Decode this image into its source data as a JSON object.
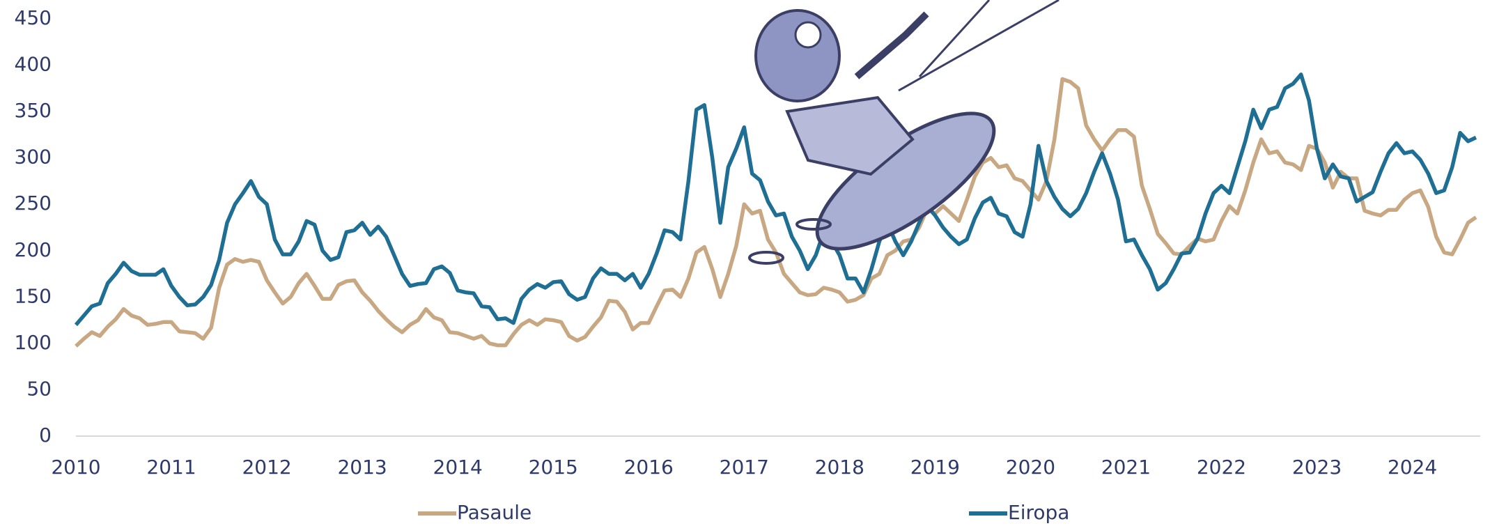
{
  "chart_data": {
    "type": "line",
    "categories": [
      "2010",
      null,
      null,
      null,
      null,
      null,
      null,
      null,
      null,
      null,
      null,
      null,
      "2011",
      null,
      null,
      null,
      null,
      null,
      null,
      null,
      null,
      null,
      null,
      null,
      "2012",
      null,
      null,
      null,
      null,
      null,
      null,
      null,
      null,
      null,
      null,
      null,
      "2013",
      null,
      null,
      null,
      null,
      null,
      null,
      null,
      null,
      null,
      null,
      null,
      "2014",
      null,
      null,
      null,
      null,
      null,
      null,
      null,
      null,
      null,
      null,
      null,
      "2015",
      null,
      null,
      null,
      null,
      null,
      null,
      null,
      null,
      null,
      null,
      null,
      "2016",
      null,
      null,
      null,
      null,
      null,
      null,
      null,
      null,
      null,
      null,
      null,
      "2017",
      null,
      null,
      null,
      null,
      null,
      null,
      null,
      null,
      null,
      null,
      null,
      "2018",
      null,
      null,
      null,
      null,
      null,
      null,
      null,
      null,
      null,
      null,
      null,
      "2019",
      null,
      null,
      null,
      null,
      null,
      null,
      null,
      null,
      null,
      null,
      null,
      "2020",
      null,
      null,
      null,
      null,
      null,
      null,
      null,
      null,
      null,
      null,
      null,
      "2021",
      null,
      null,
      null,
      null,
      null,
      null,
      null,
      null,
      null,
      null,
      null,
      "2022",
      null,
      null,
      null,
      null,
      null,
      null,
      null,
      null,
      null,
      null,
      null,
      "2023",
      null,
      null,
      null,
      null,
      null,
      null,
      null,
      null,
      null,
      null,
      null,
      "2024",
      null,
      null,
      null,
      null,
      null,
      null,
      null,
      null
    ],
    "series": [
      {
        "name": "Pasaule",
        "color": "#c8a882",
        "values": [
          97,
          105,
          112,
          108,
          118,
          126,
          137,
          130,
          127,
          120,
          121,
          123,
          123,
          113,
          112,
          111,
          105,
          117,
          160,
          185,
          191,
          188,
          190,
          188,
          168,
          155,
          143,
          150,
          165,
          175,
          162,
          148,
          148,
          163,
          167,
          168,
          155,
          146,
          135,
          126,
          118,
          112,
          120,
          125,
          137,
          128,
          125,
          112,
          111,
          108,
          105,
          108,
          100,
          98,
          98,
          110,
          120,
          125,
          120,
          126,
          125,
          123,
          108,
          103,
          107,
          118,
          128,
          146,
          145,
          134,
          115,
          122,
          122,
          140,
          157,
          158,
          150,
          170,
          198,
          204,
          180,
          150,
          175,
          205,
          250,
          240,
          243,
          212,
          198,
          175,
          165,
          155,
          152,
          153,
          160,
          158,
          155,
          145,
          147,
          152,
          170,
          175,
          195,
          200,
          210,
          212,
          225,
          245,
          240,
          248,
          240,
          232,
          255,
          280,
          295,
          300,
          290,
          292,
          278,
          275,
          265,
          255,
          275,
          320,
          385,
          382,
          375,
          335,
          320,
          308,
          320,
          330,
          330,
          323,
          270,
          245,
          218,
          208,
          197,
          196,
          205,
          213,
          210,
          212,
          232,
          248,
          240,
          265,
          295,
          320,
          305,
          307,
          295,
          293,
          287,
          313,
          310,
          295,
          268,
          285,
          278,
          278,
          243,
          240,
          238,
          244,
          244,
          255,
          262,
          265,
          247,
          215,
          198,
          196,
          212,
          230,
          236
        ]
      },
      {
        "name": "Eiropa",
        "color": "#1f6f94",
        "values": [
          120,
          130,
          140,
          143,
          165,
          175,
          187,
          178,
          174,
          174,
          174,
          180,
          162,
          150,
          141,
          142,
          150,
          163,
          190,
          230,
          250,
          262,
          275,
          258,
          250,
          212,
          196,
          196,
          210,
          232,
          228,
          200,
          190,
          193,
          220,
          222,
          230,
          217,
          226,
          215,
          195,
          175,
          162,
          164,
          165,
          180,
          183,
          176,
          157,
          155,
          154,
          140,
          139,
          126,
          127,
          122,
          148,
          158,
          164,
          160,
          166,
          167,
          153,
          147,
          150,
          170,
          181,
          175,
          175,
          168,
          175,
          160,
          175,
          197,
          222,
          220,
          212,
          275,
          352,
          357,
          300,
          230,
          290,
          310,
          333,
          283,
          276,
          253,
          238,
          240,
          215,
          200,
          180,
          195,
          220,
          210,
          195,
          170,
          170,
          155,
          180,
          210,
          230,
          210,
          195,
          210,
          230,
          248,
          238,
          225,
          215,
          207,
          212,
          235,
          252,
          257,
          240,
          237,
          220,
          215,
          250,
          313,
          275,
          258,
          245,
          237,
          245,
          262,
          285,
          305,
          283,
          255,
          210,
          212,
          195,
          180,
          158,
          165,
          180,
          197,
          198,
          213,
          240,
          262,
          270,
          262,
          290,
          318,
          352,
          332,
          352,
          355,
          375,
          380,
          390,
          362,
          310,
          278,
          293,
          280,
          278,
          253,
          258,
          263,
          285,
          305,
          316,
          305,
          307,
          298,
          283,
          262,
          265,
          290,
          327,
          318,
          322
        ]
      }
    ],
    "ylim": [
      0,
      450
    ],
    "yticks": [
      0,
      50,
      100,
      150,
      200,
      250,
      300,
      350,
      400,
      450
    ],
    "grid": false,
    "legend": "bottom"
  }
}
